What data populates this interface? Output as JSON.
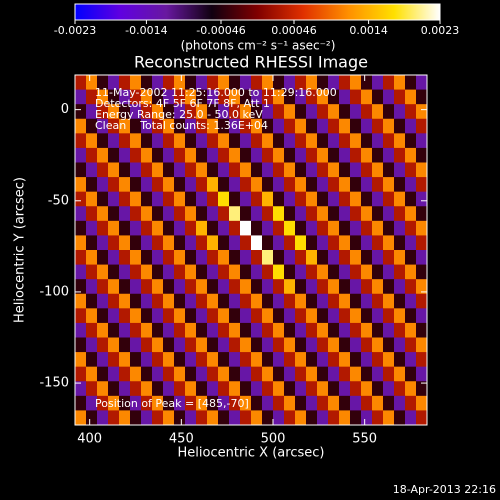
{
  "chart_data": {
    "type": "heatmap",
    "title": "Reconstructed RHESSI Image",
    "x_label": "Heliocentric X (arcsec)",
    "y_label": "Heliocentric Y (arcsec)",
    "colorbar_label": "(photons cm⁻² s⁻¹ asec⁻²)",
    "annotations": [
      "11-May-2002 11:25:16.000 to 11:29:16.000",
      "Detectors: 4F 5F 6F 7F 8F, Att 1",
      "Energy Range: 25.0 - 50.0 keV",
      "Clean    Total counts: 1.36E+04"
    ],
    "peak_label": "Position of Peak = [485,-70]",
    "footer": "18-Apr-2013 22:16",
    "xlim": [
      392,
      584
    ],
    "ylim": [
      -173,
      19
    ],
    "xticks": [
      400,
      450,
      500,
      550
    ],
    "yticks": [
      0,
      -50,
      -100,
      -150
    ],
    "clim": [
      -0.0023,
      0.0023
    ],
    "cticks": [
      -0.0023,
      -0.0014,
      -0.00046,
      0.00046,
      0.0014,
      0.0023
    ],
    "colormap": [
      "#0000ff",
      "#6000e0",
      "#6818a0",
      "#100010",
      "#800000",
      "#e03000",
      "#ff9000",
      "#ffe000",
      "#ffffff"
    ],
    "x": [
      395,
      401,
      407,
      413,
      419,
      425,
      431,
      437,
      443,
      449,
      455,
      461,
      467,
      473,
      479,
      485,
      491,
      497,
      503,
      509,
      515,
      521,
      527,
      533,
      539,
      545,
      551,
      557,
      563,
      569,
      575,
      581
    ],
    "y": [
      15,
      7,
      -1,
      -9,
      -17,
      -25,
      -33,
      -41,
      -49,
      -57,
      -65,
      -73,
      -81,
      -89,
      -97,
      -105,
      -113,
      -121,
      -129,
      -137,
      -145,
      -153,
      -161,
      -169
    ],
    "z": [
      [
        0.0003,
        0.0011,
        -0.0004,
        -0.0012,
        0.0003,
        0.0011,
        -0.0004,
        -0.0012,
        0.0003,
        0.0011,
        -0.0004,
        -0.0012,
        0.0003,
        0.0011,
        -0.0004,
        -0.0012,
        0.0003,
        0.0011,
        -0.0004,
        -0.0012,
        0.0003,
        0.0011,
        -0.0004,
        -0.0012,
        0.0003,
        0.0011,
        -0.0004,
        -0.0012,
        0.0003,
        0.0011,
        -0.0004,
        -0.0012
      ],
      [
        -0.0012,
        0.0003,
        0.0011,
        -0.0004,
        -0.0012,
        0.0003,
        0.0011,
        -0.0004,
        -0.0012,
        0.0003,
        0.0011,
        -0.0004,
        -0.0012,
        0.0003,
        0.0011,
        -0.0004,
        -0.0012,
        0.0003,
        0.0011,
        -0.0004,
        -0.0012,
        0.0003,
        0.0011,
        -0.0004,
        -0.0012,
        0.0003,
        0.0011,
        -0.0004,
        -0.0012,
        0.0003,
        0.0011,
        -0.0004
      ],
      [
        -0.0004,
        -0.0012,
        0.0003,
        0.0011,
        -0.0004,
        -0.0012,
        0.0003,
        0.0011,
        -0.0004,
        -0.0012,
        0.0003,
        0.0011,
        -0.0004,
        -0.0012,
        0.0003,
        0.0011,
        -0.0004,
        -0.0012,
        0.0003,
        0.0011,
        -0.0004,
        -0.0012,
        0.0003,
        0.0011,
        -0.0004,
        -0.0012,
        0.0003,
        0.0011,
        -0.0004,
        -0.0012,
        0.0003,
        0.0011
      ],
      [
        0.0011,
        -0.0004,
        -0.0012,
        0.0003,
        0.0011,
        -0.0004,
        -0.0012,
        0.0003,
        0.0011,
        -0.0004,
        -0.0012,
        0.0003,
        0.0011,
        -0.0004,
        -0.0012,
        0.0003,
        0.0011,
        -0.0004,
        -0.0012,
        0.0003,
        0.0011,
        -0.0004,
        -0.0012,
        0.0003,
        0.0011,
        -0.0004,
        -0.0012,
        0.0003,
        0.0011,
        -0.0004,
        -0.0012,
        0.0003
      ],
      [
        0.0003,
        0.0011,
        -0.0004,
        -0.0012,
        0.0003,
        0.0011,
        -0.0004,
        -0.0012,
        0.0003,
        0.0011,
        -0.0004,
        -0.0012,
        0.0003,
        0.0011,
        -0.0004,
        -0.0012,
        0.0003,
        0.0011,
        -0.0004,
        -0.0012,
        0.0003,
        0.0011,
        -0.0004,
        -0.0012,
        0.0003,
        0.0011,
        -0.0004,
        -0.0012,
        0.0003,
        0.0011,
        -0.0004,
        -0.0012
      ],
      [
        -0.0012,
        0.0003,
        0.0011,
        -0.0004,
        -0.0012,
        0.0003,
        0.0011,
        -0.0004,
        -0.0012,
        0.0003,
        0.0011,
        -0.0004,
        -0.0012,
        0.0003,
        0.0011,
        -0.0004,
        -0.0012,
        0.0003,
        0.0011,
        -0.0004,
        -0.0012,
        0.0003,
        0.0011,
        -0.0004,
        -0.0012,
        0.0003,
        0.0011,
        -0.0004,
        -0.0012,
        0.0003,
        0.0011,
        -0.0004
      ],
      [
        -0.0004,
        -0.0012,
        0.0003,
        0.0011,
        -0.0004,
        -0.0012,
        0.0003,
        0.0011,
        -0.0004,
        -0.0012,
        0.0003,
        0.0011,
        -0.0004,
        -0.0012,
        0.0003,
        0.0011,
        -0.0004,
        -0.0012,
        0.0003,
        0.0011,
        -0.0004,
        -0.0012,
        0.0003,
        0.0011,
        -0.0004,
        -0.0012,
        0.0003,
        0.0011,
        -0.0004,
        -0.0012,
        0.0003,
        0.0011
      ],
      [
        0.0011,
        -0.0004,
        -0.0012,
        0.0003,
        0.0011,
        -0.0004,
        -0.0012,
        0.0003,
        0.0011,
        -0.0004,
        -0.0012,
        0.0003,
        0.0014,
        -0.0004,
        -0.0012,
        0.0003,
        0.0011,
        -0.0004,
        -0.0012,
        0.0003,
        0.0011,
        -0.0004,
        -0.0012,
        0.0003,
        0.0011,
        -0.0004,
        -0.0012,
        0.0003,
        0.0011,
        -0.0004,
        -0.0012,
        0.0003
      ],
      [
        0.0003,
        0.0011,
        -0.0004,
        -0.0012,
        0.0003,
        0.0011,
        -0.0004,
        -0.0012,
        0.0003,
        0.0011,
        -0.0004,
        -0.0012,
        0.0003,
        0.0017,
        -0.0004,
        -0.0012,
        0.0003,
        0.0014,
        -0.0004,
        -0.0012,
        0.0003,
        0.0011,
        -0.0004,
        -0.0012,
        0.0003,
        0.0011,
        -0.0004,
        -0.0012,
        0.0003,
        0.0011,
        -0.0004,
        -0.0012
      ],
      [
        -0.0012,
        0.0003,
        0.0011,
        -0.0004,
        -0.0012,
        0.0003,
        0.0011,
        -0.0004,
        -0.0012,
        0.0003,
        0.0011,
        -0.0004,
        -0.0012,
        0.0003,
        0.002,
        -0.0004,
        -0.0012,
        0.0003,
        0.0017,
        -0.0004,
        -0.0012,
        0.0003,
        0.0011,
        -0.0004,
        -0.0012,
        0.0003,
        0.0011,
        -0.0004,
        -0.0012,
        0.0003,
        0.0011,
        -0.0004
      ],
      [
        -0.0004,
        -0.0012,
        0.0003,
        0.0011,
        -0.0004,
        -0.0012,
        0.0003,
        0.0011,
        -0.0004,
        -0.0012,
        0.0003,
        0.0014,
        -0.0004,
        -0.0012,
        0.0003,
        0.0023,
        -0.0004,
        -0.0012,
        0.0003,
        0.0017,
        -0.0004,
        -0.0012,
        0.0003,
        0.0011,
        -0.0004,
        -0.0012,
        0.0003,
        0.0011,
        -0.0004,
        -0.0012,
        0.0003,
        0.0011
      ],
      [
        0.0011,
        -0.0004,
        -0.0012,
        0.0003,
        0.0011,
        -0.0004,
        -0.0012,
        0.0003,
        0.0011,
        -0.0004,
        -0.0012,
        0.0003,
        0.0014,
        -0.0004,
        -0.0012,
        0.0003,
        0.0023,
        -0.0004,
        -0.0012,
        0.0003,
        0.0017,
        -0.0004,
        -0.0012,
        0.0003,
        0.0011,
        -0.0004,
        -0.0012,
        0.0003,
        0.0011,
        -0.0004,
        -0.0012,
        0.0003
      ],
      [
        0.0003,
        0.0011,
        -0.0004,
        -0.0012,
        0.0003,
        0.0011,
        -0.0004,
        -0.0012,
        0.0003,
        0.0011,
        -0.0004,
        -0.0012,
        0.0003,
        0.0011,
        -0.0004,
        -0.0012,
        0.0003,
        0.002,
        -0.0004,
        -0.0012,
        0.0003,
        0.0014,
        -0.0004,
        -0.0012,
        0.0003,
        0.0011,
        -0.0004,
        -0.0012,
        0.0003,
        0.0011,
        -0.0004,
        -0.0012
      ],
      [
        -0.0012,
        0.0003,
        0.0011,
        -0.0004,
        -0.0012,
        0.0003,
        0.0011,
        -0.0004,
        -0.0012,
        0.0003,
        0.0011,
        -0.0004,
        -0.0012,
        0.0003,
        0.0011,
        -0.0004,
        -0.0012,
        0.0003,
        0.0017,
        -0.0004,
        -0.0012,
        0.0003,
        0.0011,
        -0.0004,
        -0.0012,
        0.0003,
        0.0011,
        -0.0004,
        -0.0012,
        0.0003,
        0.0011,
        -0.0004
      ],
      [
        -0.0004,
        -0.0012,
        0.0003,
        0.0011,
        -0.0004,
        -0.0012,
        0.0003,
        0.0011,
        -0.0004,
        -0.0012,
        0.0003,
        0.0011,
        -0.0004,
        -0.0012,
        0.0003,
        0.0011,
        -0.0004,
        -0.0012,
        0.0003,
        0.0014,
        -0.0004,
        -0.0012,
        0.0003,
        0.0011,
        -0.0004,
        -0.0012,
        0.0003,
        0.0011,
        -0.0004,
        -0.0012,
        0.0003,
        0.0011
      ],
      [
        0.0011,
        -0.0004,
        -0.0012,
        0.0003,
        0.0011,
        -0.0004,
        -0.0012,
        0.0003,
        0.0011,
        -0.0004,
        -0.0012,
        0.0003,
        0.0011,
        -0.0004,
        -0.0012,
        0.0003,
        0.0011,
        -0.0004,
        -0.0012,
        0.0003,
        0.0011,
        -0.0004,
        -0.0012,
        0.0003,
        0.0011,
        -0.0004,
        -0.0012,
        0.0003,
        0.0011,
        -0.0004,
        -0.0012,
        0.0003
      ],
      [
        0.0003,
        0.0011,
        -0.0004,
        -0.0012,
        0.0003,
        0.0011,
        -0.0004,
        -0.0012,
        0.0003,
        0.0011,
        -0.0004,
        -0.0012,
        0.0003,
        0.0011,
        -0.0004,
        -0.0012,
        0.0003,
        0.0011,
        -0.0004,
        -0.0012,
        0.0003,
        0.0011,
        -0.0004,
        -0.0012,
        0.0003,
        0.0011,
        -0.0004,
        -0.0012,
        0.0003,
        0.0011,
        -0.0004,
        -0.0012
      ],
      [
        -0.0012,
        0.0003,
        0.0011,
        -0.0004,
        -0.0012,
        0.0003,
        0.0011,
        -0.0004,
        -0.0012,
        0.0003,
        0.0011,
        -0.0004,
        -0.0012,
        0.0003,
        0.0011,
        -0.0004,
        -0.0012,
        0.0003,
        0.0011,
        -0.0004,
        -0.0012,
        0.0003,
        0.0011,
        -0.0004,
        -0.0012,
        0.0003,
        0.0011,
        -0.0004,
        -0.0012,
        0.0003,
        0.0011,
        -0.0004
      ],
      [
        -0.0004,
        -0.0012,
        0.0003,
        0.0011,
        -0.0004,
        -0.0012,
        0.0003,
        0.0011,
        -0.0004,
        -0.0012,
        0.0003,
        0.0011,
        -0.0004,
        -0.0012,
        0.0003,
        0.0011,
        -0.0004,
        -0.0012,
        0.0003,
        0.0011,
        -0.0004,
        -0.0012,
        0.0003,
        0.0011,
        -0.0004,
        -0.0012,
        0.0003,
        0.0011,
        -0.0004,
        -0.0012,
        0.0003,
        0.0011
      ],
      [
        0.0011,
        -0.0004,
        -0.0012,
        0.0003,
        0.0011,
        -0.0004,
        -0.0012,
        0.0003,
        0.0011,
        -0.0004,
        -0.0012,
        0.0003,
        0.0011,
        -0.0004,
        -0.0012,
        0.0003,
        0.0011,
        -0.0004,
        -0.0012,
        0.0003,
        0.0011,
        -0.0004,
        -0.0012,
        0.0003,
        0.0011,
        -0.0004,
        -0.0012,
        0.0003,
        0.0011,
        -0.0004,
        -0.0012,
        0.0003
      ],
      [
        0.0003,
        0.0011,
        -0.0004,
        -0.0012,
        0.0003,
        0.0011,
        -0.0004,
        -0.0012,
        0.0003,
        0.0011,
        -0.0004,
        -0.0012,
        0.0003,
        0.0011,
        -0.0004,
        -0.0012,
        0.0003,
        0.0011,
        -0.0004,
        -0.0012,
        0.0003,
        0.0011,
        -0.0004,
        -0.0012,
        0.0003,
        0.0011,
        -0.0004,
        -0.0012,
        0.0003,
        0.0011,
        -0.0004,
        -0.0012
      ],
      [
        -0.0012,
        0.0003,
        0.0011,
        -0.0004,
        -0.0012,
        0.0003,
        0.0011,
        -0.0004,
        -0.0012,
        0.0003,
        0.0011,
        -0.0004,
        -0.0012,
        0.0003,
        0.0011,
        -0.0004,
        -0.0012,
        0.0003,
        0.0011,
        -0.0004,
        -0.0012,
        0.0003,
        0.0011,
        -0.0004,
        -0.0012,
        0.0003,
        0.0011,
        -0.0004,
        -0.0012,
        0.0003,
        0.0011,
        -0.0004
      ],
      [
        -0.0004,
        -0.0012,
        0.0003,
        0.0011,
        -0.0004,
        -0.0012,
        0.0003,
        0.0011,
        -0.0004,
        -0.0012,
        0.0003,
        0.0011,
        -0.0004,
        -0.0012,
        0.0003,
        0.0011,
        -0.0004,
        -0.0012,
        0.0003,
        0.0011,
        -0.0004,
        -0.0012,
        0.0003,
        0.0011,
        -0.0004,
        -0.0012,
        0.0003,
        0.0011,
        -0.0004,
        -0.0012,
        0.0003,
        0.0011
      ],
      [
        0.0011,
        -0.0004,
        -0.0012,
        0.0003,
        0.0011,
        -0.0004,
        -0.0012,
        0.0003,
        0.0011,
        -0.0004,
        -0.0012,
        0.0003,
        0.0011,
        -0.0004,
        -0.0012,
        0.0003,
        0.0011,
        -0.0004,
        -0.0012,
        0.0003,
        0.0011,
        -0.0004,
        -0.0012,
        0.0003,
        0.0011,
        -0.0004,
        -0.0012,
        0.0003,
        0.0011,
        -0.0004,
        -0.0012,
        0.0003
      ]
    ]
  }
}
